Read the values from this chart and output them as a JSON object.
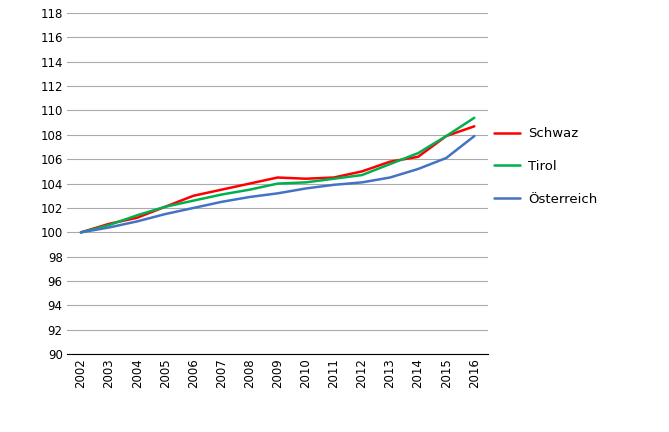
{
  "years": [
    2002,
    2003,
    2004,
    2005,
    2006,
    2007,
    2008,
    2009,
    2010,
    2011,
    2012,
    2013,
    2014,
    2015,
    2016
  ],
  "schwaz": [
    100.0,
    100.7,
    101.2,
    102.1,
    103.0,
    103.5,
    104.0,
    104.5,
    104.4,
    104.5,
    105.0,
    105.8,
    106.2,
    107.9,
    108.7
  ],
  "tirol": [
    100.0,
    100.6,
    101.4,
    102.1,
    102.6,
    103.1,
    103.5,
    104.0,
    104.1,
    104.4,
    104.7,
    105.6,
    106.5,
    107.9,
    109.4
  ],
  "oesterreich": [
    100.0,
    100.4,
    100.9,
    101.5,
    102.0,
    102.5,
    102.9,
    103.2,
    103.6,
    103.9,
    104.1,
    104.5,
    105.2,
    106.1,
    107.9
  ],
  "schwaz_color": "#ff0000",
  "tirol_color": "#00b050",
  "oesterreich_color": "#4472c4",
  "ylim": [
    90,
    118
  ],
  "yticks": [
    90,
    92,
    94,
    96,
    98,
    100,
    102,
    104,
    106,
    108,
    110,
    112,
    114,
    116,
    118
  ],
  "line_width": 1.8,
  "legend_labels": [
    "Schwaz",
    "Tirol",
    "Österreich"
  ],
  "background_color": "#ffffff",
  "grid_color": "#aaaaaa"
}
